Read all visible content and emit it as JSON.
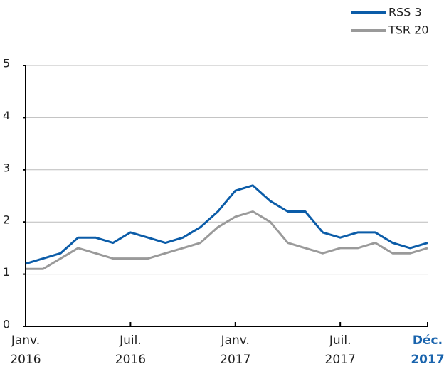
{
  "chart_data": {
    "type": "line",
    "categories": [
      "Janv.\n2016",
      null,
      null,
      null,
      null,
      null,
      "Juil.\n2016",
      null,
      null,
      null,
      null,
      null,
      "Janv.\n2017",
      null,
      null,
      null,
      null,
      null,
      "Juil.\n2017",
      null,
      null,
      null,
      null,
      "Déc.\n2017"
    ],
    "series": [
      {
        "name": "RSS 3",
        "color": "#0b5ca8",
        "values": [
          1.2,
          1.3,
          1.4,
          1.7,
          1.7,
          1.6,
          1.8,
          1.7,
          1.6,
          1.7,
          1.9,
          2.2,
          2.6,
          2.7,
          2.4,
          2.2,
          2.2,
          1.8,
          1.7,
          1.8,
          1.8,
          1.6,
          1.5,
          1.6
        ]
      },
      {
        "name": "TSR 20",
        "color": "#9a9a9a",
        "values": [
          1.1,
          1.1,
          1.3,
          1.5,
          1.4,
          1.3,
          1.3,
          1.3,
          1.4,
          1.5,
          1.6,
          1.9,
          2.1,
          2.2,
          2.0,
          1.6,
          1.5,
          1.4,
          1.5,
          1.5,
          1.6,
          1.4,
          1.4,
          1.5
        ]
      }
    ],
    "ylim": [
      0,
      5
    ],
    "yticks": [
      0,
      1,
      2,
      3,
      4,
      5
    ],
    "grid": true,
    "legend": "top-right",
    "highlight": {
      "index": 23,
      "color": "#1a64ad"
    }
  }
}
